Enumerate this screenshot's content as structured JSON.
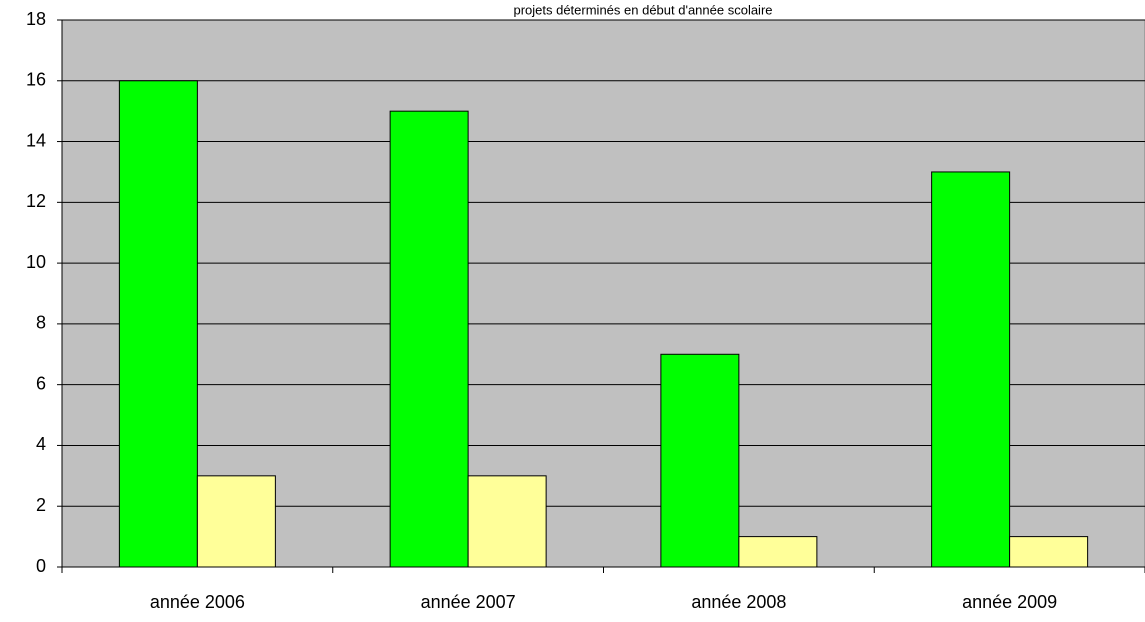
{
  "chart_data": {
    "type": "bar",
    "title": "projets déterminés en début d'année scolaire",
    "categories": [
      "année 2006",
      "année 2007",
      "année 2008",
      "année 2009"
    ],
    "series": [
      {
        "color": "#00ff00",
        "values": [
          16,
          15,
          7,
          13
        ]
      },
      {
        "color": "#ffff99",
        "values": [
          3,
          3,
          1,
          1
        ]
      }
    ],
    "ylim": [
      0,
      18
    ],
    "yticks": [
      0,
      2,
      4,
      6,
      8,
      10,
      12,
      14,
      16,
      18
    ],
    "grid": true,
    "plot_background": "#c0c0c0"
  }
}
